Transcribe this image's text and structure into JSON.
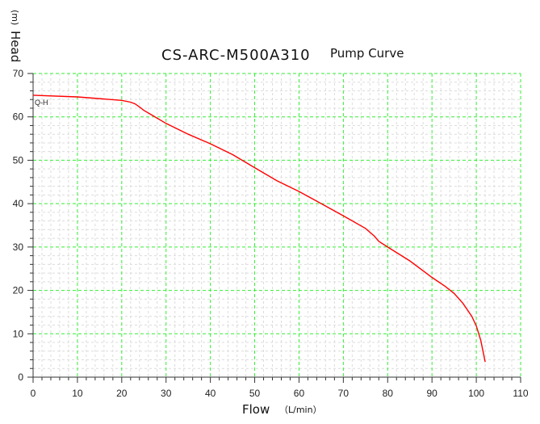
{
  "chart_data": {
    "type": "line",
    "title_model": "CS-ARC-M500A310",
    "title_suffix": "Pump Curve",
    "xlabel": "Flow",
    "xunit": "（L/min）",
    "ylabel": "Head",
    "yunit": "(m)",
    "xlim": [
      0,
      110
    ],
    "ylim": [
      0,
      70
    ],
    "x_ticks": [
      0,
      10,
      20,
      30,
      40,
      50,
      60,
      70,
      80,
      90,
      100,
      110
    ],
    "y_ticks": [
      0,
      10,
      20,
      30,
      40,
      50,
      60,
      70
    ],
    "grid": true,
    "series": [
      {
        "name": "Q-H",
        "color": "#ff0000",
        "x": [
          0,
          10,
          20,
          22,
          23,
          24,
          25,
          27,
          30,
          35,
          40,
          45,
          50,
          55,
          60,
          65,
          70,
          75,
          77,
          78,
          80,
          85,
          90,
          93,
          95,
          97,
          99,
          100,
          101,
          102
        ],
        "y": [
          65,
          64.6,
          63.8,
          63.4,
          63,
          62.3,
          61.5,
          60.3,
          58.5,
          56,
          53.8,
          51.3,
          48.3,
          45.3,
          42.8,
          40,
          37.2,
          34.3,
          32.5,
          31.3,
          30,
          26.8,
          23,
          20.9,
          19.3,
          17,
          14,
          11.8,
          8.5,
          3.5
        ]
      }
    ]
  }
}
